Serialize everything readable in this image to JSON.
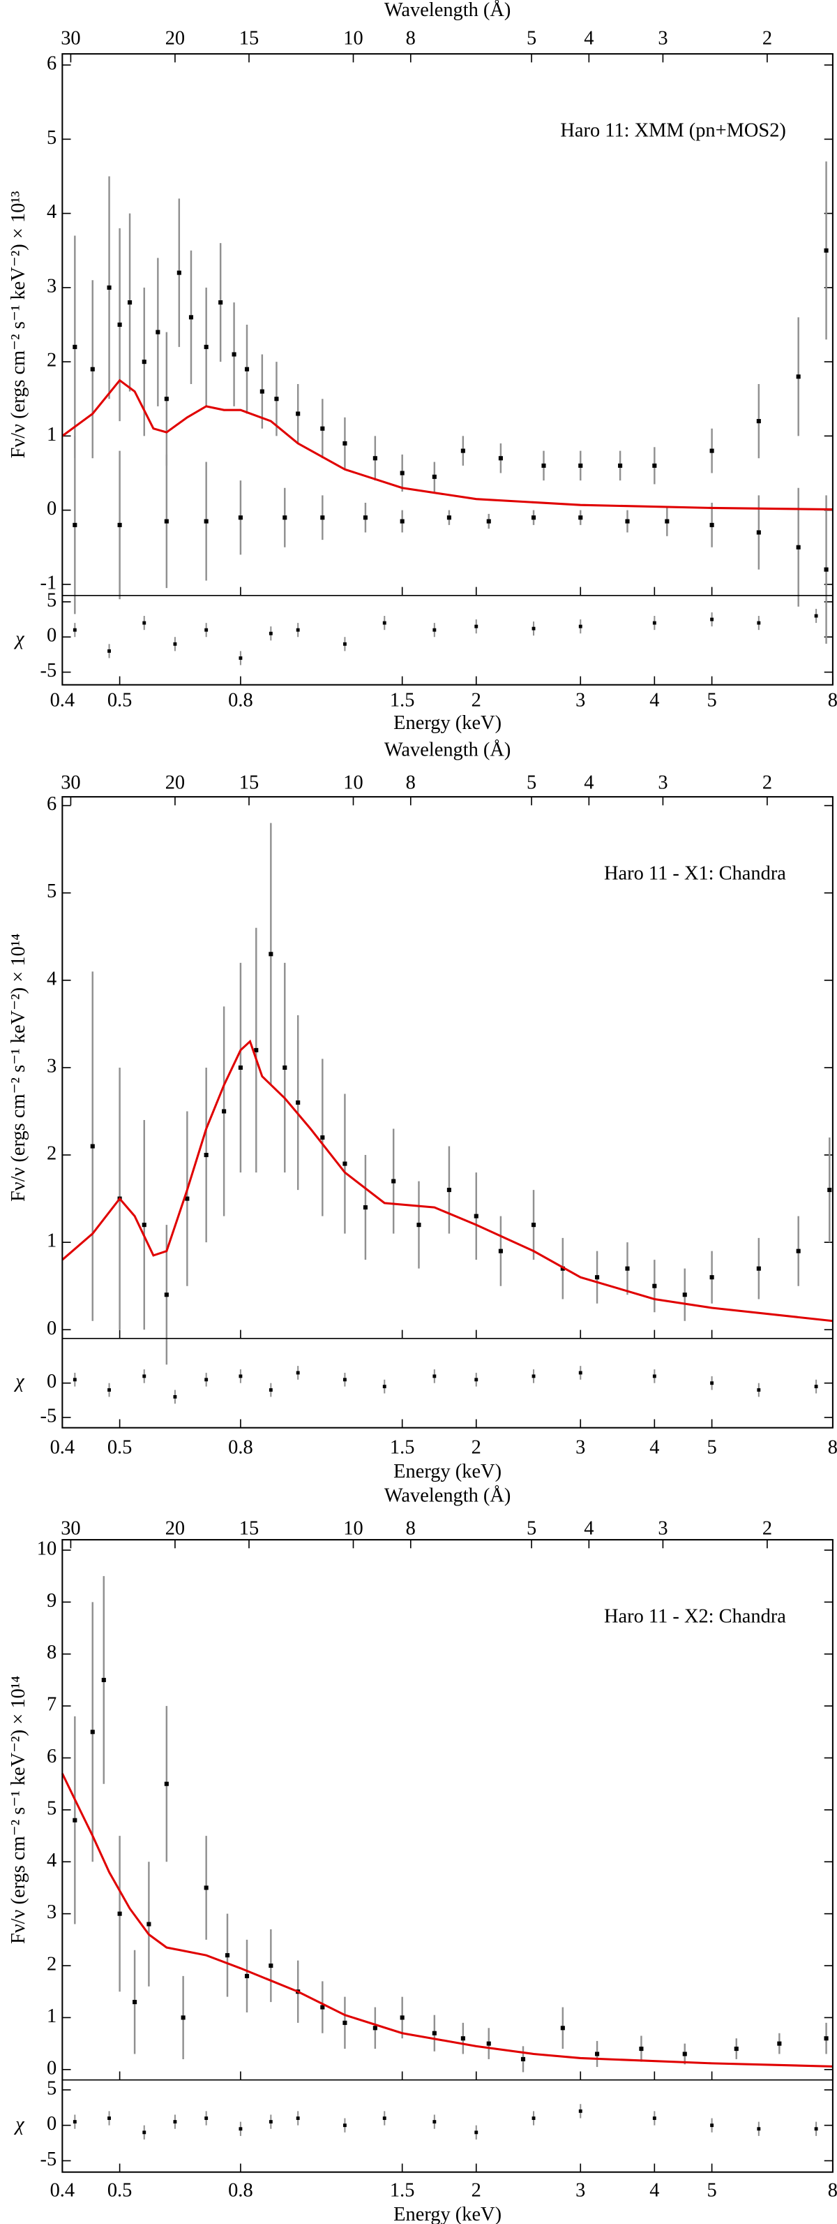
{
  "chart_data": [
    {
      "type": "spectrum",
      "title": "Haro 11: XMM (pn+MOS2)",
      "xlabel": "Energy (keV)",
      "x2label": "Wavelength (Å)",
      "ylabel": "Fν/ν (ergs cm⁻² s⁻¹ keV⁻²) × 10¹³",
      "xscale": "log",
      "xlim": [
        0.4,
        8
      ],
      "xticks": [
        0.4,
        0.5,
        0.8,
        1.5,
        2,
        3,
        4,
        5,
        8
      ],
      "x2lim": [
        31,
        1.55
      ],
      "x2ticks": [
        30,
        20,
        15,
        10,
        8,
        5,
        4,
        3,
        2
      ],
      "ylim": [
        -1.15,
        6.15
      ],
      "yticks": [
        -1,
        0,
        1,
        2,
        3,
        4,
        5,
        6
      ],
      "model": {
        "color": "#e00000",
        "x": [
          0.4,
          0.45,
          0.5,
          0.53,
          0.57,
          0.6,
          0.65,
          0.7,
          0.75,
          0.8,
          0.9,
          1.0,
          1.2,
          1.5,
          2,
          3,
          5,
          8
        ],
        "values": [
          1.0,
          1.3,
          1.75,
          1.6,
          1.1,
          1.05,
          1.25,
          1.4,
          1.35,
          1.35,
          1.2,
          0.9,
          0.55,
          0.3,
          0.15,
          0.07,
          0.03,
          0.01
        ]
      },
      "data": [
        {
          "color": "#000000",
          "errcolor": "#909090",
          "x": [
            0.42,
            0.45,
            0.48,
            0.5,
            0.52,
            0.55,
            0.58,
            0.6,
            0.63,
            0.66,
            0.7,
            0.74,
            0.78,
            0.82,
            0.87,
            0.92,
            1.0,
            1.1,
            1.2,
            1.35,
            1.5,
            1.7,
            1.9,
            2.2,
            2.6,
            3.0,
            3.5,
            4.0,
            5.0,
            6.0,
            7.0,
            7.8
          ],
          "values": [
            2.2,
            1.9,
            3.0,
            2.5,
            2.8,
            2.0,
            2.4,
            1.5,
            3.2,
            2.6,
            2.2,
            2.8,
            2.1,
            1.9,
            1.6,
            1.5,
            1.3,
            1.1,
            0.9,
            0.7,
            0.5,
            0.45,
            0.8,
            0.7,
            0.6,
            0.6,
            0.6,
            0.6,
            0.8,
            1.2,
            1.8,
            3.5
          ],
          "errors": [
            1.5,
            1.2,
            1.5,
            1.3,
            1.2,
            1.0,
            1.0,
            0.9,
            1.0,
            0.9,
            0.8,
            0.8,
            0.7,
            0.6,
            0.5,
            0.5,
            0.4,
            0.4,
            0.35,
            0.3,
            0.25,
            0.2,
            0.2,
            0.2,
            0.2,
            0.2,
            0.2,
            0.25,
            0.3,
            0.5,
            0.8,
            1.2
          ]
        },
        {
          "color": "#000000",
          "errcolor": "#909090",
          "x": [
            0.42,
            0.5,
            0.6,
            0.7,
            0.8,
            0.95,
            1.1,
            1.3,
            1.5,
            1.8,
            2.1,
            2.5,
            3.0,
            3.6,
            4.2,
            5.0,
            6.0,
            7.0,
            7.8
          ],
          "values": [
            -0.2,
            -0.2,
            -0.15,
            -0.15,
            -0.1,
            -0.1,
            -0.1,
            -0.1,
            -0.15,
            -0.1,
            -0.15,
            -0.1,
            -0.1,
            -0.15,
            -0.15,
            -0.2,
            -0.3,
            -0.5,
            -0.8
          ],
          "errors": [
            1.2,
            1.0,
            0.9,
            0.8,
            0.5,
            0.4,
            0.3,
            0.2,
            0.15,
            0.1,
            0.1,
            0.1,
            0.1,
            0.15,
            0.2,
            0.3,
            0.5,
            0.8,
            1.0
          ]
        }
      ],
      "residuals": {
        "ylabel": "χ",
        "ylim": [
          -6.8,
          5.9
        ],
        "yticks": [
          -5,
          0,
          5
        ],
        "x": [
          0.42,
          0.48,
          0.55,
          0.62,
          0.7,
          0.8,
          0.9,
          1.0,
          1.2,
          1.4,
          1.7,
          2.0,
          2.5,
          3.0,
          4.0,
          5.0,
          6.0,
          7.5
        ],
        "values": [
          1,
          -2,
          2,
          -1,
          1,
          -3,
          0.5,
          1,
          -1,
          2,
          1,
          1.5,
          1.2,
          1.5,
          2,
          2.5,
          2,
          3
        ],
        "errors": [
          1,
          1,
          1,
          1,
          1,
          1,
          1,
          1,
          1,
          1,
          1,
          1,
          1,
          1,
          1,
          1,
          1,
          1
        ]
      }
    },
    {
      "type": "spectrum",
      "title": "Haro 11 - X1: Chandra",
      "xlabel": "Energy (keV)",
      "x2label": "Wavelength (Å)",
      "ylabel": "Fν/ν (ergs cm⁻² s⁻¹ keV⁻²) × 10¹⁴",
      "xscale": "log",
      "xlim": [
        0.4,
        8
      ],
      "xticks": [
        0.4,
        0.5,
        0.8,
        1.5,
        2,
        3,
        4,
        5,
        8
      ],
      "x2lim": [
        31,
        1.55
      ],
      "x2ticks": [
        30,
        20,
        15,
        10,
        8,
        5,
        4,
        3,
        2
      ],
      "ylim": [
        -0.1,
        6.1
      ],
      "yticks": [
        0,
        1,
        2,
        3,
        4,
        5,
        6
      ],
      "model": {
        "color": "#e00000",
        "x": [
          0.4,
          0.45,
          0.5,
          0.53,
          0.57,
          0.6,
          0.65,
          0.7,
          0.75,
          0.8,
          0.83,
          0.87,
          0.95,
          1.05,
          1.2,
          1.4,
          1.7,
          2,
          2.5,
          3,
          4,
          5,
          8
        ],
        "values": [
          0.8,
          1.1,
          1.5,
          1.3,
          0.85,
          0.9,
          1.6,
          2.3,
          2.8,
          3.2,
          3.3,
          2.9,
          2.65,
          2.3,
          1.8,
          1.45,
          1.4,
          1.2,
          0.9,
          0.6,
          0.35,
          0.25,
          0.1
        ]
      },
      "data": [
        {
          "color": "#000000",
          "errcolor": "#909090",
          "x": [
            0.45,
            0.5,
            0.55,
            0.6,
            0.65,
            0.7,
            0.75,
            0.8,
            0.85,
            0.9,
            0.95,
            1.0,
            1.1,
            1.2,
            1.3,
            1.45,
            1.6,
            1.8,
            2.0,
            2.2,
            2.5,
            2.8,
            3.2,
            3.6,
            4.0,
            4.5,
            5.0,
            6.0,
            7.0,
            7.9
          ],
          "values": [
            2.1,
            1.5,
            1.2,
            0.4,
            1.5,
            2.0,
            2.5,
            3.0,
            3.2,
            4.3,
            3.0,
            2.6,
            2.2,
            1.9,
            1.4,
            1.7,
            1.2,
            1.6,
            1.3,
            0.9,
            1.2,
            0.7,
            0.6,
            0.7,
            0.5,
            0.4,
            0.6,
            0.7,
            0.9,
            1.6
          ],
          "errors": [
            2,
            1.5,
            1.2,
            0.8,
            1.0,
            1.0,
            1.2,
            1.2,
            1.4,
            1.5,
            1.2,
            1.0,
            0.9,
            0.8,
            0.6,
            0.6,
            0.5,
            0.5,
            0.5,
            0.4,
            0.4,
            0.35,
            0.3,
            0.3,
            0.3,
            0.3,
            0.3,
            0.35,
            0.4,
            0.6
          ]
        }
      ],
      "residuals": {
        "ylabel": "χ",
        "ylim": [
          -6.5,
          6.5
        ],
        "yticks": [
          -5,
          0
        ],
        "x": [
          0.42,
          0.48,
          0.55,
          0.62,
          0.7,
          0.8,
          0.9,
          1.0,
          1.2,
          1.4,
          1.7,
          2.0,
          2.5,
          3.0,
          4.0,
          5.0,
          6.0,
          7.5
        ],
        "values": [
          0.5,
          -1,
          1,
          -2,
          0.5,
          1,
          -1,
          1.5,
          0.5,
          -0.5,
          1,
          0.5,
          1,
          1.5,
          1,
          0,
          -1,
          -0.5
        ],
        "errors": [
          1,
          1,
          1,
          1,
          1,
          1,
          1,
          1,
          1,
          1,
          1,
          1,
          1,
          1,
          1,
          1,
          1,
          1
        ]
      }
    },
    {
      "type": "spectrum",
      "title": "Haro 11 - X2: Chandra",
      "xlabel": "Energy (keV)",
      "x2label": "Wavelength (Å)",
      "ylabel": "Fν/ν (ergs cm⁻² s⁻¹ keV⁻²) × 10¹⁴",
      "xscale": "log",
      "xlim": [
        0.4,
        8
      ],
      "xticks": [
        0.4,
        0.5,
        0.8,
        1.5,
        2,
        3,
        4,
        5,
        8
      ],
      "x2lim": [
        31,
        1.55
      ],
      "x2ticks": [
        30,
        20,
        15,
        10,
        8,
        5,
        4,
        3,
        2
      ],
      "ylim": [
        -0.2,
        10.2
      ],
      "yticks": [
        0,
        1,
        2,
        3,
        4,
        5,
        6,
        7,
        8,
        9,
        10
      ],
      "model": {
        "color": "#e00000",
        "x": [
          0.4,
          0.42,
          0.45,
          0.48,
          0.52,
          0.56,
          0.6,
          0.7,
          0.8,
          1.0,
          1.2,
          1.5,
          2,
          2.5,
          3,
          5,
          8
        ],
        "values": [
          5.7,
          5.2,
          4.5,
          3.8,
          3.1,
          2.6,
          2.35,
          2.2,
          1.95,
          1.5,
          1.05,
          0.7,
          0.45,
          0.3,
          0.22,
          0.12,
          0.06
        ]
      },
      "data": [
        {
          "color": "#000000",
          "errcolor": "#909090",
          "x": [
            0.42,
            0.45,
            0.47,
            0.5,
            0.53,
            0.56,
            0.6,
            0.64,
            0.7,
            0.76,
            0.82,
            0.9,
            1.0,
            1.1,
            1.2,
            1.35,
            1.5,
            1.7,
            1.9,
            2.1,
            2.4,
            2.8,
            3.2,
            3.8,
            4.5,
            5.5,
            6.5,
            7.8
          ],
          "values": [
            4.8,
            6.5,
            7.5,
            3.0,
            1.3,
            2.8,
            5.5,
            1.0,
            3.5,
            2.2,
            1.8,
            2.0,
            1.5,
            1.2,
            0.9,
            0.8,
            1.0,
            0.7,
            0.6,
            0.5,
            0.2,
            0.8,
            0.3,
            0.4,
            0.3,
            0.4,
            0.5,
            0.6
          ],
          "errors": [
            2,
            2.5,
            2,
            1.5,
            1,
            1.2,
            1.5,
            0.8,
            1.0,
            0.8,
            0.7,
            0.7,
            0.6,
            0.5,
            0.5,
            0.4,
            0.4,
            0.35,
            0.3,
            0.3,
            0.25,
            0.4,
            0.25,
            0.25,
            0.2,
            0.2,
            0.2,
            0.3
          ]
        }
      ],
      "residuals": {
        "ylabel": "χ",
        "ylim": [
          -6.6,
          6.4
        ],
        "yticks": [
          -5,
          0,
          5
        ],
        "x": [
          0.42,
          0.48,
          0.55,
          0.62,
          0.7,
          0.8,
          0.9,
          1.0,
          1.2,
          1.4,
          1.7,
          2.0,
          2.5,
          3.0,
          4.0,
          5.0,
          6.0,
          7.5
        ],
        "values": [
          0.5,
          1,
          -1,
          0.5,
          1,
          -0.5,
          0.5,
          1,
          0,
          1,
          0.5,
          -1,
          1,
          2,
          1,
          0,
          -0.5,
          -0.5
        ],
        "errors": [
          1,
          1,
          1,
          1,
          1,
          1,
          1,
          1,
          1,
          1,
          1,
          1,
          1,
          1,
          1,
          1,
          1,
          1
        ]
      }
    }
  ]
}
